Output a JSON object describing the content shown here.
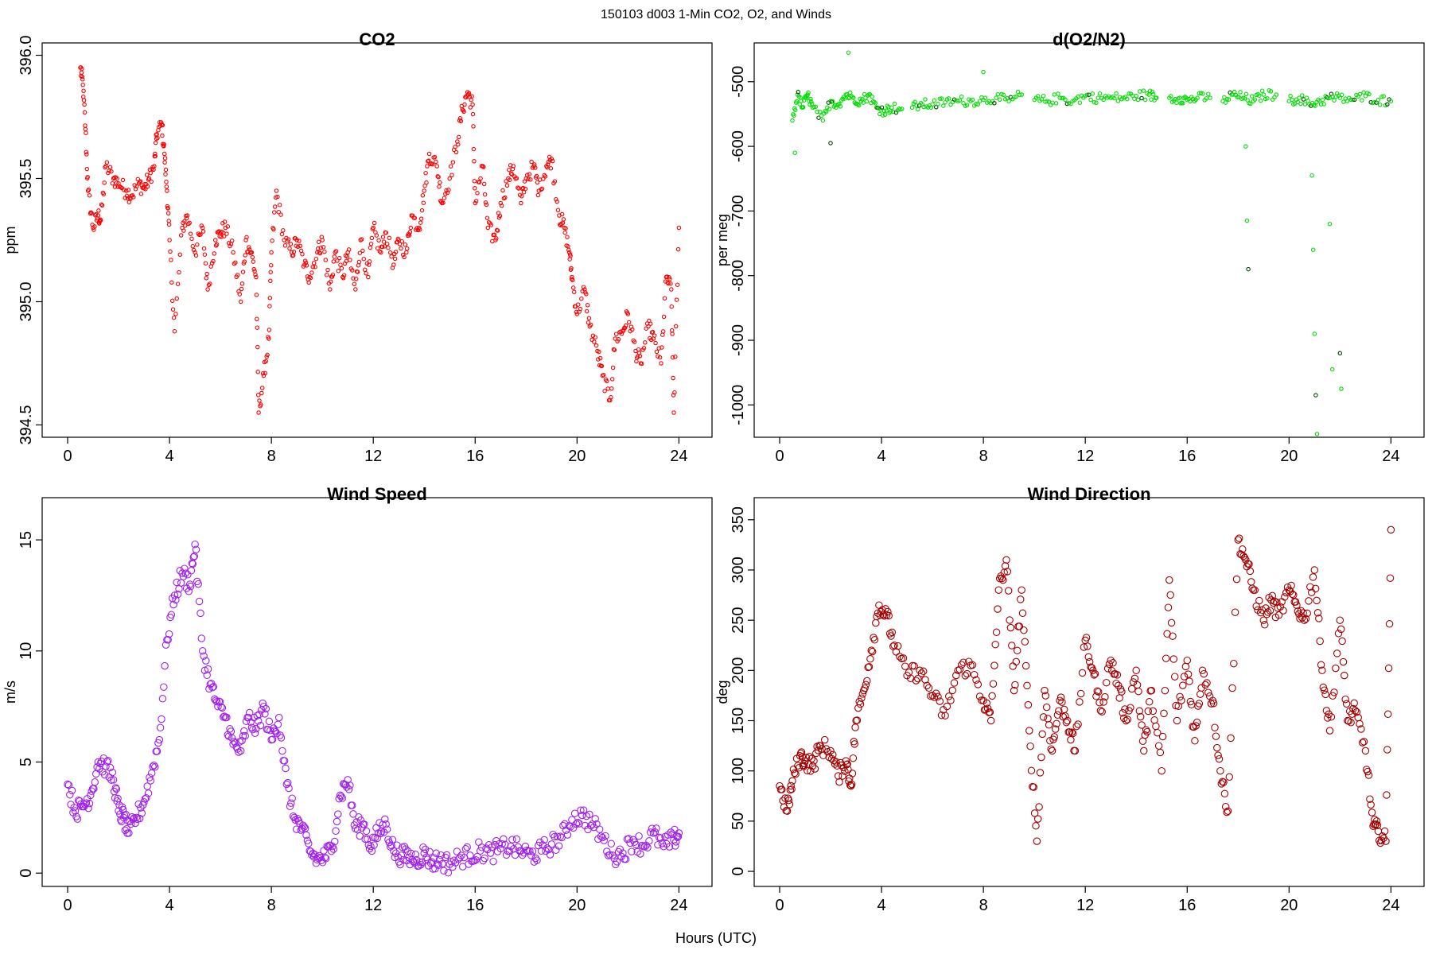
{
  "figure": {
    "title": "150103   d003   1-Min CO2, O2, and Winds",
    "xlabel": "Hours (UTC)"
  },
  "chart_data": [
    {
      "id": "co2",
      "type": "scatter",
      "title": "CO2",
      "xlabel": "",
      "ylabel": "ppm",
      "xlim": [
        -1,
        25.3
      ],
      "ylim": [
        394.45,
        396.05
      ],
      "xticks": [
        0,
        4,
        8,
        12,
        16,
        20,
        24
      ],
      "xtick_labels": [
        "0",
        "4",
        "8",
        "12",
        "16",
        "20",
        "24"
      ],
      "yticks": [
        394.5,
        395.0,
        395.5,
        396.0
      ],
      "ytick_labels": [
        "394.5",
        "395.0",
        "395.5",
        "396.0"
      ],
      "ytick_rotated": true,
      "color": "#ff0000",
      "marker_radius": 2.2,
      "dense": true,
      "jitter": 0.035,
      "points_per_segment": 6,
      "series": [
        {
          "x": [
            0.5,
            0.6,
            0.7,
            0.8,
            1.0,
            1.2,
            1.3,
            1.5,
            1.8,
            2.0,
            2.3,
            2.5,
            2.8,
            3.0,
            3.2,
            3.4,
            3.5,
            3.7,
            3.8,
            3.9,
            4.0,
            4.2,
            4.5,
            4.7,
            5.0,
            5.3,
            5.5,
            5.8,
            6.0,
            6.2,
            6.5,
            6.8,
            7.0,
            7.2,
            7.4,
            7.5,
            7.7,
            7.9,
            8.0,
            8.2,
            8.5,
            8.8,
            9.0,
            9.3,
            9.5,
            9.8,
            10.0,
            10.3,
            10.5,
            10.8,
            11.0,
            11.3,
            11.5,
            11.8,
            12.0,
            12.3,
            12.5,
            12.8,
            13.0,
            13.3,
            13.5,
            13.8,
            14.0,
            14.2,
            14.5,
            14.7,
            15.0,
            15.3,
            15.5,
            15.7,
            15.9,
            16.0,
            16.3,
            16.5,
            16.8,
            17.0,
            17.3,
            17.5,
            17.8,
            18.0,
            18.3,
            18.5,
            18.8,
            19.0,
            19.3,
            19.5,
            19.7,
            19.8,
            20.0,
            20.3,
            20.5,
            20.8,
            21.0,
            21.3,
            21.5,
            21.8,
            22.0,
            22.3,
            22.5,
            22.8,
            23.0,
            23.3,
            23.5,
            23.7,
            23.8,
            24.0
          ],
          "y": [
            395.95,
            395.88,
            395.7,
            395.45,
            395.3,
            395.35,
            395.33,
            395.55,
            395.5,
            395.48,
            395.45,
            395.43,
            395.48,
            395.46,
            395.5,
            395.55,
            395.68,
            395.72,
            395.6,
            395.45,
            395.25,
            394.88,
            395.3,
            395.35,
            395.2,
            395.3,
            395.05,
            395.25,
            395.28,
            395.3,
            395.2,
            395.0,
            395.25,
            395.2,
            395.1,
            394.55,
            394.7,
            394.85,
            395.2,
            395.45,
            395.25,
            395.2,
            395.25,
            395.15,
            395.1,
            395.2,
            395.25,
            395.05,
            395.2,
            395.1,
            395.2,
            395.05,
            395.25,
            395.1,
            395.3,
            395.2,
            395.28,
            395.15,
            395.25,
            395.2,
            395.35,
            395.3,
            395.45,
            395.6,
            395.55,
            395.4,
            395.5,
            395.65,
            395.78,
            395.85,
            395.8,
            395.4,
            395.55,
            395.3,
            395.25,
            395.4,
            395.5,
            395.55,
            395.4,
            395.5,
            395.55,
            395.45,
            395.55,
            395.58,
            395.35,
            395.3,
            395.2,
            395.1,
            394.95,
            395.05,
            394.9,
            394.8,
            394.7,
            394.6,
            394.85,
            394.88,
            394.95,
            394.8,
            394.75,
            394.9,
            394.85,
            394.75,
            395.1,
            395.05,
            394.55,
            395.3
          ]
        }
      ]
    },
    {
      "id": "o2",
      "type": "scatter",
      "title": "d(O2/N2)",
      "xlabel": "",
      "ylabel": "per meg",
      "xlim": [
        -1,
        25.3
      ],
      "ylim": [
        -1050,
        -440
      ],
      "xticks": [
        0,
        4,
        8,
        12,
        16,
        20,
        24
      ],
      "xtick_labels": [
        "0",
        "4",
        "8",
        "12",
        "16",
        "20",
        "24"
      ],
      "yticks": [
        -1000,
        -900,
        -800,
        -700,
        -600,
        -500
      ],
      "ytick_labels": [
        "-1000",
        "-900",
        "-800",
        "-700",
        "-600",
        "-500"
      ],
      "ytick_rotated": true,
      "color": "#00dd00",
      "marker_radius": 2.2,
      "dense": true,
      "jitter": 8,
      "points_per_segment": 6,
      "gaps": [
        [
          4.8,
          5.2
        ],
        [
          9.5,
          10.0
        ],
        [
          14.8,
          15.3
        ],
        [
          16.9,
          17.4
        ],
        [
          19.5,
          20.0
        ]
      ],
      "series": [
        {
          "x": [
            0.5,
            0.7,
            0.9,
            1.1,
            1.3,
            1.7,
            2.0,
            2.3,
            2.6,
            2.9,
            3.2,
            3.5,
            3.8,
            4.1,
            4.4,
            4.8,
            5.2,
            5.6,
            6.0,
            6.5,
            7.0,
            7.5,
            8.0,
            8.5,
            9.0,
            9.5,
            10.0,
            10.5,
            11.0,
            11.5,
            12.0,
            12.5,
            13.0,
            13.5,
            14.0,
            14.5,
            14.8,
            15.3,
            15.7,
            16.0,
            16.4,
            16.9,
            17.4,
            17.8,
            18.2,
            18.6,
            19.0,
            19.5,
            20.0,
            20.4,
            20.8,
            21.2,
            21.6,
            22.0,
            22.5,
            23.0,
            23.5,
            24.0
          ],
          "y": [
            -560,
            -520,
            -540,
            -520,
            -540,
            -560,
            -530,
            -535,
            -520,
            -525,
            -530,
            -520,
            -540,
            -545,
            -540,
            -542,
            -540,
            -535,
            -535,
            -532,
            -530,
            -530,
            -528,
            -525,
            -530,
            -520,
            -528,
            -530,
            -525,
            -530,
            -522,
            -525,
            -525,
            -525,
            -522,
            -520,
            -525,
            -525,
            -525,
            -528,
            -525,
            -525,
            -530,
            -520,
            -525,
            -530,
            -520,
            -520,
            -530,
            -525,
            -535,
            -530,
            -525,
            -525,
            -528,
            -522,
            -528,
            -530
          ]
        }
      ],
      "outliers": {
        "x": [
          0.6,
          2.0,
          2.7,
          18.3,
          18.35,
          18.4,
          20.9,
          20.95,
          21.0,
          21.05,
          21.1,
          21.6,
          21.7,
          22.0,
          22.05,
          8.0
        ],
        "y": [
          -610,
          -595,
          -455,
          -600,
          -715,
          -790,
          -645,
          -760,
          -890,
          -985,
          -1045,
          -720,
          -945,
          -920,
          -975,
          -485
        ]
      }
    },
    {
      "id": "wspd",
      "type": "scatter",
      "title": "Wind Speed",
      "xlabel": "",
      "ylabel": "m/s",
      "xlim": [
        -1,
        25.3
      ],
      "ylim": [
        -0.6,
        16.9
      ],
      "xticks": [
        0,
        4,
        8,
        12,
        16,
        20,
        24
      ],
      "xtick_labels": [
        "0",
        "4",
        "8",
        "12",
        "16",
        "20",
        "24"
      ],
      "yticks": [
        0,
        5,
        10,
        15
      ],
      "ytick_labels": [
        "0",
        "5",
        "10",
        "15"
      ],
      "ytick_rotated": true,
      "color": "#a020f0",
      "marker_radius": 4.2,
      "dense": true,
      "jitter": 0.45,
      "points_per_segment": 6,
      "series": [
        {
          "x": [
            0.0,
            0.3,
            0.6,
            0.9,
            1.2,
            1.5,
            1.8,
            2.0,
            2.2,
            2.4,
            2.7,
            3.0,
            3.3,
            3.6,
            3.9,
            4.2,
            4.5,
            4.8,
            5.0,
            5.3,
            5.6,
            5.9,
            6.2,
            6.5,
            6.8,
            7.1,
            7.4,
            7.7,
            8.0,
            8.3,
            8.6,
            8.9,
            9.2,
            9.5,
            9.8,
            10.1,
            10.4,
            10.7,
            11.0,
            11.3,
            11.6,
            11.9,
            12.2,
            12.5,
            12.8,
            13.1,
            13.4,
            13.7,
            14.0,
            14.3,
            14.6,
            15.0,
            15.4,
            15.8,
            16.2,
            16.6,
            17.0,
            17.4,
            17.8,
            18.2,
            18.6,
            19.0,
            19.4,
            19.8,
            20.2,
            20.6,
            21.0,
            21.4,
            21.8,
            22.2,
            22.6,
            23.0,
            23.4,
            23.8,
            24.0
          ],
          "y": [
            4.0,
            2.8,
            3.0,
            3.5,
            5.0,
            4.8,
            4.2,
            2.8,
            2.5,
            1.8,
            2.5,
            3.2,
            4.5,
            6.0,
            10.5,
            12.5,
            13.5,
            13.0,
            14.8,
            10.0,
            8.5,
            7.5,
            7.0,
            5.8,
            5.5,
            7.0,
            6.5,
            7.5,
            6.0,
            7.0,
            4.0,
            2.5,
            2.0,
            1.0,
            0.6,
            0.7,
            1.2,
            3.5,
            4.2,
            2.0,
            2.2,
            1.2,
            1.8,
            2.2,
            1.0,
            0.8,
            0.7,
            0.6,
            0.9,
            0.5,
            0.6,
            0.4,
            0.7,
            0.8,
            1.0,
            0.9,
            1.1,
            1.2,
            1.0,
            0.8,
            1.0,
            1.3,
            1.6,
            2.4,
            2.6,
            2.2,
            1.6,
            0.8,
            0.9,
            1.5,
            1.2,
            1.8,
            1.2,
            1.5,
            1.8
          ]
        }
      ]
    },
    {
      "id": "wdir",
      "type": "scatter",
      "title": "Wind Direction",
      "xlabel": "",
      "ylabel": "deg",
      "xlim": [
        -1,
        25.3
      ],
      "ylim": [
        -15,
        372
      ],
      "xticks": [
        0,
        4,
        8,
        12,
        16,
        20,
        24
      ],
      "xtick_labels": [
        "0",
        "4",
        "8",
        "12",
        "16",
        "20",
        "24"
      ],
      "yticks": [
        0,
        50,
        100,
        150,
        200,
        250,
        300,
        350
      ],
      "ytick_labels": [
        "0",
        "50",
        "100",
        "150",
        "200",
        "250",
        "300",
        "350"
      ],
      "ytick_rotated": true,
      "color": "#a50000",
      "marker_radius": 4.2,
      "dense": true,
      "jitter": 9,
      "points_per_segment": 6,
      "series": [
        {
          "x": [
            0.0,
            0.3,
            0.5,
            0.8,
            1.0,
            1.3,
            1.6,
            2.0,
            2.3,
            2.6,
            2.8,
            3.0,
            3.3,
            3.6,
            3.9,
            4.2,
            4.5,
            5.0,
            5.5,
            6.0,
            6.5,
            7.0,
            7.5,
            8.0,
            8.3,
            8.6,
            8.9,
            9.2,
            9.5,
            9.8,
            10.1,
            10.4,
            10.7,
            11.0,
            11.3,
            11.6,
            12.0,
            12.3,
            12.6,
            13.0,
            13.3,
            13.6,
            14.0,
            14.3,
            14.6,
            15.0,
            15.3,
            15.6,
            16.0,
            16.3,
            16.6,
            17.0,
            17.3,
            17.6,
            18.0,
            18.3,
            18.6,
            19.0,
            19.3,
            19.6,
            20.0,
            20.3,
            20.6,
            21.0,
            21.3,
            21.6,
            22.0,
            22.3,
            22.6,
            23.0,
            23.3,
            23.5,
            23.8,
            24.0
          ],
          "y": [
            85,
            60,
            90,
            115,
            110,
            105,
            125,
            120,
            95,
            110,
            85,
            150,
            180,
            220,
            265,
            255,
            225,
            195,
            200,
            175,
            155,
            200,
            205,
            170,
            150,
            280,
            310,
            180,
            280,
            140,
            30,
            180,
            120,
            170,
            150,
            120,
            230,
            200,
            160,
            210,
            185,
            150,
            200,
            120,
            180,
            100,
            290,
            150,
            210,
            130,
            200,
            170,
            100,
            60,
            330,
            310,
            280,
            250,
            270,
            255,
            280,
            265,
            250,
            300,
            200,
            140,
            250,
            150,
            160,
            120,
            45,
            40,
            30,
            340
          ]
        }
      ]
    }
  ]
}
